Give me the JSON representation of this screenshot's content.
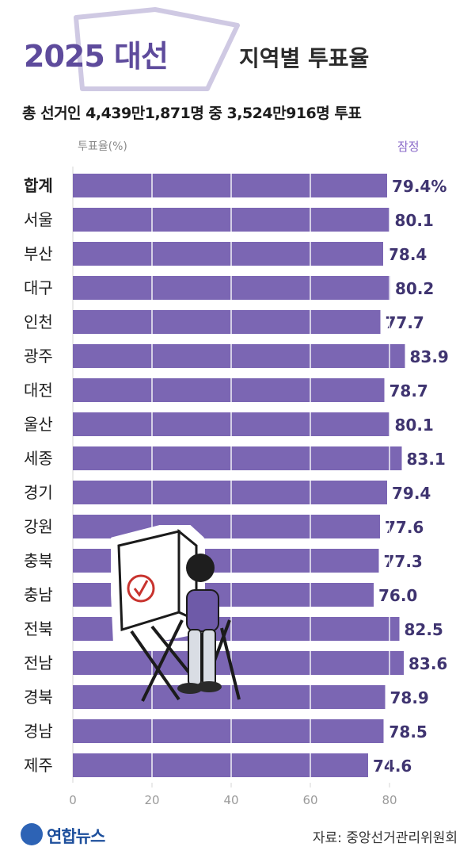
{
  "title": {
    "main": "2025 대선",
    "sub": "지역별 투표율"
  },
  "subtitle": "총 선거인 4,439만1,871명 중 3,524만916명 투표",
  "colors": {
    "bar": "#7b66b3",
    "value_text": "#3f3470",
    "title": "#5e4b9c",
    "deco": "#b8b2d4"
  },
  "source": "자료: 중앙선거관리위원회",
  "logo": {
    "text": "연합뉴스",
    "icon": "yonhap-logo-icon"
  },
  "illustration": {
    "icon": "voting-booth-person-icon"
  },
  "chart_data": {
    "type": "bar",
    "orientation": "horizontal",
    "ylabel": "투표율(%)",
    "series_name": "잠정",
    "categories": [
      "합계",
      "서울",
      "부산",
      "대구",
      "인천",
      "광주",
      "대전",
      "울산",
      "세종",
      "경기",
      "강원",
      "충북",
      "충남",
      "전북",
      "전남",
      "경북",
      "경남",
      "제주"
    ],
    "values": [
      79.4,
      80.1,
      78.4,
      80.2,
      77.7,
      83.9,
      78.7,
      80.1,
      83.1,
      79.4,
      77.6,
      77.3,
      76.0,
      82.5,
      83.6,
      78.9,
      78.5,
      74.6
    ],
    "value_labels": [
      "79.4%",
      "80.1",
      "78.4",
      "80.2",
      "77.7",
      "83.9",
      "78.7",
      "80.1",
      "83.1",
      "79.4",
      "77.6",
      "77.3",
      "76.0",
      "82.5",
      "83.6",
      "78.9",
      "78.5",
      "74.6"
    ],
    "xlim": [
      0,
      100
    ],
    "xticks": [
      "0",
      "20",
      "40",
      "60",
      "80"
    ],
    "grid": true,
    "legend": "top-right"
  }
}
